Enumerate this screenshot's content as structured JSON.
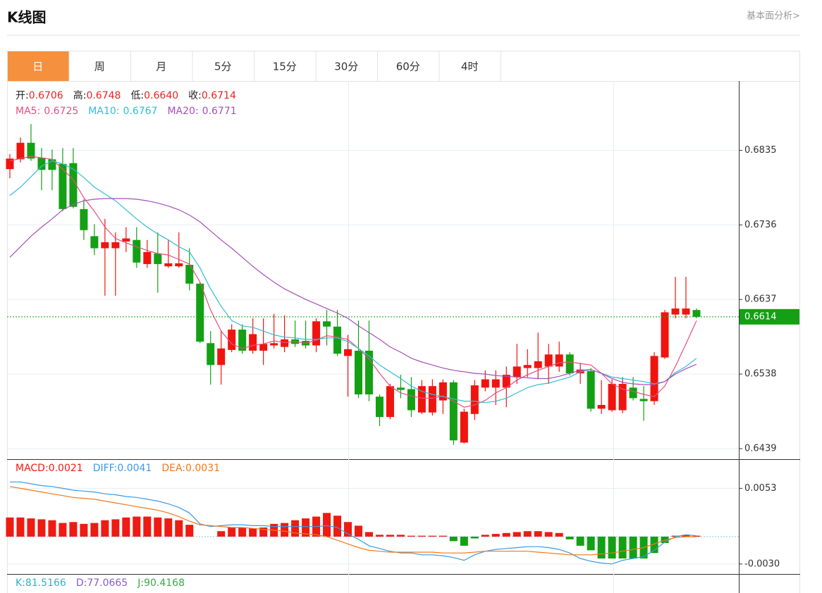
{
  "header": {
    "title": "K线图",
    "link": "基本面分析>"
  },
  "tabs": {
    "items": [
      "日",
      "周",
      "月",
      "5分",
      "15分",
      "30分",
      "60分",
      "4时"
    ],
    "active": 0
  },
  "chart_data": [
    {
      "type": "candlestick",
      "info": [
        {
          "label": "开:",
          "value": 0.6706
        },
        {
          "label": "高:",
          "value": 0.6748
        },
        {
          "label": "低:",
          "value": 0.664,
          "value_label": "0.6640"
        },
        {
          "label": "收:",
          "value": 0.6714
        }
      ],
      "info_label_color": "#222222",
      "info_value_color": "#e52421",
      "up_color": "#f0140f",
      "down_color": "#14a014",
      "ylim": [
        0.6425,
        0.6927
      ],
      "yticks": [
        0.6439,
        0.6538,
        0.6637,
        0.6736,
        0.6835
      ],
      "grid": true,
      "last_price": 0.6614,
      "last_price_color": "#14a014",
      "open": [
        0.681,
        0.6823,
        0.6845,
        0.6825,
        0.6823,
        0.6817,
        0.6818,
        0.6757,
        0.6721,
        0.6705,
        0.6705,
        0.6714,
        0.6716,
        0.6684,
        0.6698,
        0.6681,
        0.6681,
        0.6683,
        0.6658,
        0.6579,
        0.655,
        0.657,
        0.6597,
        0.6569,
        0.6569,
        0.6576,
        0.6574,
        0.6584,
        0.6582,
        0.6576,
        0.6608,
        0.6601,
        0.6562,
        0.6569,
        0.6569,
        0.6508,
        0.6481,
        0.652,
        0.6518,
        0.6487,
        0.6487,
        0.6503,
        0.6527,
        0.6447,
        0.6485,
        0.652,
        0.652,
        0.652,
        0.6534,
        0.6546,
        0.6546,
        0.6548,
        0.6548,
        0.6564,
        0.6539,
        0.6542,
        0.6492,
        0.649,
        0.649,
        0.652,
        0.6505,
        0.6502,
        0.656,
        0.6617,
        0.6617,
        0.6623
      ],
      "high": [
        0.683,
        0.6852,
        0.687,
        0.6838,
        0.6836,
        0.6838,
        0.6838,
        0.677,
        0.6737,
        0.6744,
        0.6726,
        0.6733,
        0.6733,
        0.6716,
        0.6726,
        0.6716,
        0.6726,
        0.6705,
        0.666,
        0.6595,
        0.6595,
        0.6604,
        0.6604,
        0.6612,
        0.6612,
        0.6618,
        0.6616,
        0.6609,
        0.6609,
        0.6612,
        0.6623,
        0.6623,
        0.659,
        0.6609,
        0.6609,
        0.6511,
        0.6525,
        0.6537,
        0.6534,
        0.653,
        0.6531,
        0.6531,
        0.653,
        0.6492,
        0.653,
        0.6543,
        0.6543,
        0.6548,
        0.6578,
        0.6571,
        0.6593,
        0.6578,
        0.6581,
        0.6567,
        0.6553,
        0.6546,
        0.653,
        0.6531,
        0.6534,
        0.6534,
        0.6522,
        0.6567,
        0.6623,
        0.6667,
        0.6667,
        0.6625
      ],
      "low": [
        0.6798,
        0.6819,
        0.6821,
        0.6782,
        0.6782,
        0.6754,
        0.6758,
        0.6716,
        0.6696,
        0.6642,
        0.6642,
        0.67,
        0.6679,
        0.6679,
        0.6646,
        0.6679,
        0.6679,
        0.6649,
        0.6579,
        0.6524,
        0.6524,
        0.6567,
        0.6565,
        0.6565,
        0.655,
        0.6572,
        0.6567,
        0.6574,
        0.6572,
        0.6567,
        0.6576,
        0.6562,
        0.6508,
        0.6506,
        0.6502,
        0.6469,
        0.6478,
        0.6506,
        0.6481,
        0.6485,
        0.6483,
        0.6485,
        0.6444,
        0.6446,
        0.6477,
        0.6515,
        0.6497,
        0.6494,
        0.6525,
        0.6534,
        0.6531,
        0.6525,
        0.6541,
        0.6536,
        0.6525,
        0.6488,
        0.6485,
        0.6488,
        0.6486,
        0.6503,
        0.6476,
        0.6497,
        0.6558,
        0.6612,
        0.6612,
        0.6612
      ],
      "close": [
        0.6824,
        0.6845,
        0.6824,
        0.6809,
        0.6809,
        0.6757,
        0.676,
        0.6729,
        0.6705,
        0.6713,
        0.6713,
        0.6718,
        0.6686,
        0.67,
        0.6684,
        0.6685,
        0.6685,
        0.6658,
        0.6581,
        0.655,
        0.6572,
        0.6597,
        0.6569,
        0.6591,
        0.6578,
        0.6579,
        0.6584,
        0.6578,
        0.6576,
        0.6608,
        0.6601,
        0.6565,
        0.6571,
        0.6511,
        0.6511,
        0.6481,
        0.6522,
        0.6517,
        0.649,
        0.6522,
        0.6522,
        0.6527,
        0.645,
        0.6488,
        0.6523,
        0.6531,
        0.6531,
        0.6537,
        0.6548,
        0.655,
        0.6555,
        0.6564,
        0.6564,
        0.6539,
        0.6544,
        0.6492,
        0.6497,
        0.6525,
        0.6525,
        0.6506,
        0.6502,
        0.6562,
        0.662,
        0.6625,
        0.6625,
        0.6614
      ],
      "series": [
        {
          "name": "MA5:",
          "legend_value": 0.6725,
          "color": "#e2507f",
          "values": [
            0.6821,
            0.6824,
            0.6827,
            0.6825,
            0.6823,
            0.681,
            0.6796,
            0.6772,
            0.6754,
            0.6733,
            0.6718,
            0.6712,
            0.6707,
            0.6702,
            0.6698,
            0.6696,
            0.669,
            0.6684,
            0.666,
            0.6623,
            0.6595,
            0.6578,
            0.6572,
            0.6576,
            0.6578,
            0.6582,
            0.658,
            0.6581,
            0.6579,
            0.6583,
            0.6589,
            0.6587,
            0.6584,
            0.6572,
            0.6558,
            0.6539,
            0.6522,
            0.6513,
            0.6509,
            0.6506,
            0.6506,
            0.6509,
            0.6502,
            0.6494,
            0.6497,
            0.6503,
            0.6513,
            0.652,
            0.653,
            0.6537,
            0.6543,
            0.6548,
            0.6553,
            0.6554,
            0.6552,
            0.655,
            0.6539,
            0.6525,
            0.6518,
            0.6515,
            0.6511,
            0.6508,
            0.6522,
            0.6548,
            0.6578,
            0.6609
          ]
        },
        {
          "name": "MA10:",
          "legend_value": 0.6767,
          "color": "#33bcd4",
          "values": [
            0.6775,
            0.6786,
            0.68,
            0.6814,
            0.6821,
            0.6817,
            0.681,
            0.6799,
            0.6786,
            0.6777,
            0.6768,
            0.6756,
            0.6744,
            0.6733,
            0.6724,
            0.6716,
            0.6707,
            0.67,
            0.6679,
            0.6651,
            0.6628,
            0.6609,
            0.6602,
            0.66,
            0.6595,
            0.659,
            0.6587,
            0.6586,
            0.6584,
            0.6584,
            0.6586,
            0.6586,
            0.6581,
            0.6572,
            0.6562,
            0.655,
            0.6541,
            0.6532,
            0.6522,
            0.6515,
            0.6511,
            0.6508,
            0.6505,
            0.6502,
            0.6502,
            0.65,
            0.6502,
            0.6506,
            0.6513,
            0.652,
            0.6524,
            0.6526,
            0.653,
            0.6534,
            0.6541,
            0.6544,
            0.6539,
            0.6534,
            0.6532,
            0.653,
            0.6528,
            0.6525,
            0.6528,
            0.654,
            0.6548,
            0.6559
          ]
        },
        {
          "name": "MA20:",
          "legend_value": 0.6771,
          "color": "#a550bb",
          "values": [
            0.6693,
            0.6707,
            0.6721,
            0.6733,
            0.6744,
            0.6756,
            0.6763,
            0.6768,
            0.677,
            0.6771,
            0.6771,
            0.6771,
            0.677,
            0.6768,
            0.6765,
            0.6761,
            0.6756,
            0.6749,
            0.674,
            0.6728,
            0.6716,
            0.6705,
            0.6693,
            0.6681,
            0.667,
            0.666,
            0.6651,
            0.6644,
            0.6637,
            0.6631,
            0.6625,
            0.6619,
            0.6612,
            0.6602,
            0.6593,
            0.6584,
            0.6574,
            0.6567,
            0.6559,
            0.6554,
            0.655,
            0.6546,
            0.6543,
            0.6541,
            0.6539,
            0.6538,
            0.6536,
            0.6535,
            0.6534,
            0.6533,
            0.6532,
            0.6532,
            0.6535,
            0.6539,
            0.6543,
            0.6544,
            0.6539,
            0.6532,
            0.6527,
            0.6525,
            0.6524,
            0.6524,
            0.6528,
            0.6538,
            0.6545,
            0.6551
          ]
        }
      ]
    },
    {
      "type": "macd",
      "ylim": [
        -0.0041,
        0.0085
      ],
      "yticks": [
        {
          "value": -0.003,
          "label": "-0.0030"
        },
        0.0053
      ],
      "grid": true,
      "bars": {
        "name": "MACD:",
        "legend_value": 0.0021,
        "up_color": "#ee1b12",
        "down_color": "#14a014",
        "values": [
          0.0021,
          0.0021,
          0.002,
          0.0019,
          0.0018,
          0.0015,
          0.0016,
          0.0014,
          0.0015,
          0.0018,
          0.0019,
          0.0021,
          0.0022,
          0.0022,
          0.0021,
          0.002,
          0.0018,
          0.0013,
          0,
          0,
          0.0006,
          0.001,
          0.001,
          0.0009,
          0.001,
          0.0014,
          0.0015,
          0.0018,
          0.002,
          0.0022,
          0.0026,
          0.0023,
          0.0016,
          0.0012,
          0.0005,
          0.0002,
          0.0002,
          0.0002,
          0.0001,
          0.0001,
          0.0001,
          0.0001,
          -0.0005,
          -0.001,
          -0.0002,
          0.0002,
          0.0003,
          0.0004,
          0.0005,
          0.0006,
          0.0006,
          0.0005,
          0.0004,
          -0.0003,
          -0.001,
          -0.0015,
          -0.0024,
          -0.0024,
          -0.0024,
          -0.0024,
          -0.0024,
          -0.0018,
          -0.0007,
          0.0001,
          0.0002,
          0.0001
        ]
      },
      "series": [
        {
          "name": "DIFF:",
          "legend_value": 0.0041,
          "color": "#3a9ae6",
          "values": [
            0.006,
            0.006,
            0.0058,
            0.0056,
            0.0055,
            0.0053,
            0.0051,
            0.005,
            0.0049,
            0.0047,
            0.0046,
            0.0044,
            0.0043,
            0.0041,
            0.0039,
            0.0036,
            0.0032,
            0.0026,
            0.0014,
            0.0011,
            0.0012,
            0.0013,
            0.0013,
            0.0012,
            0.0012,
            0.0011,
            0.0011,
            0.0011,
            0.0011,
            0.0011,
            0.0012,
            0.001,
            0.0003,
            -0.0003,
            -0.001,
            -0.0013,
            -0.0016,
            -0.0018,
            -0.0018,
            -0.002,
            -0.002,
            -0.0021,
            -0.0023,
            -0.0026,
            -0.002,
            -0.0016,
            -0.0014,
            -0.0013,
            -0.0012,
            -0.0011,
            -0.0011,
            -0.0012,
            -0.0014,
            -0.0018,
            -0.0024,
            -0.0027,
            -0.0029,
            -0.003,
            -0.0026,
            -0.0024,
            -0.0022,
            -0.0015,
            -0.0006,
            0,
            0.0002,
            0.0001
          ]
        },
        {
          "name": "DEA:",
          "legend_value": 0.0031,
          "color": "#f07818",
          "values": [
            0.0055,
            0.0053,
            0.0051,
            0.0049,
            0.0047,
            0.0045,
            0.0043,
            0.0042,
            0.0041,
            0.0039,
            0.0037,
            0.0035,
            0.0033,
            0.0031,
            0.0029,
            0.0026,
            0.0022,
            0.0017,
            0.0013,
            0.0012,
            0.0011,
            0.001,
            0.001,
            0.0009,
            0.0008,
            0.0007,
            0.0006,
            0.0004,
            0.0003,
            0.0002,
            0,
            -0.0004,
            -0.0008,
            -0.0012,
            -0.0015,
            -0.0016,
            -0.0017,
            -0.0017,
            -0.0017,
            -0.0017,
            -0.0017,
            -0.0018,
            -0.0018,
            -0.0018,
            -0.0017,
            -0.0016,
            -0.0016,
            -0.0016,
            -0.0016,
            -0.0016,
            -0.0017,
            -0.0018,
            -0.0019,
            -0.002,
            -0.002,
            -0.002,
            -0.0019,
            -0.0018,
            -0.0016,
            -0.0014,
            -0.0012,
            -0.0008,
            -0.0004,
            -0.0001,
            0,
            0
          ]
        }
      ]
    },
    {
      "type": "kdj",
      "series": [
        {
          "name": "K:",
          "legend_value": 81.5166,
          "color": "#2bb5c9"
        },
        {
          "name": "D:",
          "legend_value": 77.0665,
          "color": "#8a5cc8"
        },
        {
          "name": "J:",
          "legend_value": 90.4168,
          "color": "#3aa84a"
        }
      ]
    }
  ]
}
